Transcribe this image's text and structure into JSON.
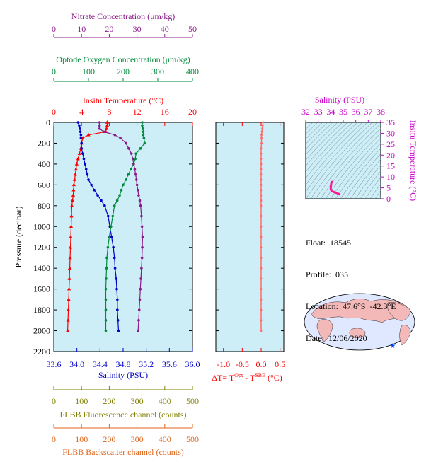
{
  "info": {
    "float_label": "Float:",
    "float": "18545",
    "profile_label": "Profile:",
    "profile": "035",
    "location_label": "Location:",
    "location": "47.6°S  -42.3°E",
    "date_label": "Date:",
    "date": "12/06/2020"
  },
  "colors": {
    "temperature": "#ff0000",
    "salinity": "#0000cc",
    "oxygen": "#008a3a",
    "nitrate": "#8b1a8b",
    "fluorescence": "#808000",
    "backscatter": "#e0661c",
    "dt": "#ff6b6b",
    "ts": "#ff1493",
    "panel_bg": "#cdeef6"
  },
  "chart_data": [
    {
      "type": "line",
      "panel": "main",
      "ylabel": "Pressure (decibar)",
      "ylim": [
        2200,
        0
      ],
      "yticks": [
        0,
        200,
        400,
        600,
        800,
        1000,
        1200,
        1400,
        1600,
        1800,
        2000,
        2200
      ],
      "axes": {
        "nitrate": {
          "label": "Nitrate Concentration (μm/kg)",
          "range": [
            0,
            50
          ],
          "ticks": [
            0,
            10,
            20,
            30,
            40,
            50
          ]
        },
        "oxygen": {
          "label": "Optode Oxygen Concentration (μm/kg)",
          "range": [
            0,
            400
          ],
          "ticks": [
            0,
            100,
            200,
            300,
            400
          ]
        },
        "temperature": {
          "label": "Insitu Temperature (°C)",
          "range": [
            0,
            20
          ],
          "ticks": [
            0,
            4,
            8,
            12,
            16,
            20
          ]
        },
        "salinity": {
          "label": "Salinity (PSU)",
          "range": [
            33.6,
            36.0
          ],
          "ticks": [
            "33.6",
            "34.0",
            "34.4",
            "34.8",
            "35.2",
            "35.6",
            "36.0"
          ]
        },
        "fluorescence": {
          "label": "FLBB Fluorescence channel (counts)",
          "range": [
            0,
            500
          ],
          "ticks": [
            0,
            100,
            200,
            300,
            400,
            500
          ]
        },
        "backscatter": {
          "label": "FLBB Backscatter channel (counts)",
          "range": [
            0,
            500
          ],
          "ticks": [
            0,
            100,
            200,
            300,
            400,
            500
          ]
        }
      },
      "series": [
        {
          "key": "temperature",
          "x": [
            7.7,
            7.7,
            7.6,
            7.5,
            5.0,
            4.2,
            4.0,
            3.9,
            3.7,
            3.5,
            3.3,
            3.2,
            3.1,
            3.0,
            2.9,
            2.85,
            2.8,
            2.7,
            2.6,
            2.55,
            2.5,
            2.45,
            2.4,
            2.35,
            2.3,
            2.25,
            2.2,
            2.15,
            2.1,
            2.05,
            2.0
          ],
          "y": [
            0,
            30,
            60,
            90,
            120,
            150,
            200,
            250,
            300,
            350,
            400,
            450,
            500,
            550,
            600,
            650,
            700,
            750,
            800,
            900,
            1000,
            1100,
            1200,
            1300,
            1400,
            1500,
            1600,
            1700,
            1800,
            1900,
            2000
          ]
        },
        {
          "key": "salinity",
          "x": [
            34.02,
            34.04,
            34.05,
            34.06,
            34.07,
            34.07,
            34.08,
            34.08,
            34.1,
            34.12,
            34.14,
            34.16,
            34.18,
            34.2,
            34.25,
            34.3,
            34.36,
            34.42,
            34.48,
            34.54,
            34.57,
            34.6,
            34.63,
            34.65,
            34.66,
            34.68,
            34.69,
            34.7,
            34.7,
            34.71,
            34.72
          ],
          "y": [
            0,
            30,
            60,
            90,
            120,
            150,
            200,
            250,
            300,
            350,
            400,
            450,
            500,
            550,
            600,
            650,
            700,
            750,
            800,
            900,
            1000,
            1100,
            1200,
            1300,
            1400,
            1500,
            1600,
            1700,
            1800,
            1900,
            2000
          ]
        },
        {
          "key": "oxygen",
          "x": [
            255,
            255,
            257,
            258,
            258,
            260,
            262,
            250,
            237,
            235,
            230,
            222,
            215,
            208,
            200,
            195,
            190,
            183,
            175,
            170,
            165,
            160,
            156,
            153,
            152,
            151,
            150,
            150,
            150,
            150,
            150
          ],
          "y": [
            0,
            30,
            60,
            90,
            120,
            150,
            200,
            250,
            300,
            350,
            400,
            450,
            500,
            550,
            600,
            650,
            700,
            750,
            800,
            900,
            1000,
            1100,
            1200,
            1300,
            1400,
            1500,
            1600,
            1700,
            1800,
            1900,
            2000
          ]
        },
        {
          "key": "nitrate",
          "x": [
            16.5,
            16.5,
            16.5,
            18,
            22,
            24,
            26,
            27,
            28,
            28.5,
            28.8,
            29.2,
            29.5,
            29.8,
            30,
            30.3,
            30.6,
            31,
            31.3,
            31.6,
            31.8,
            32,
            31.9,
            31.8,
            31.6,
            31.4,
            31.2,
            31,
            30.8,
            30.6,
            30.4
          ],
          "y": [
            0,
            30,
            60,
            90,
            120,
            150,
            200,
            250,
            300,
            350,
            400,
            450,
            500,
            550,
            600,
            650,
            700,
            750,
            800,
            900,
            1000,
            1100,
            1200,
            1300,
            1400,
            1500,
            1600,
            1700,
            1800,
            1900,
            2000
          ]
        }
      ]
    },
    {
      "type": "line",
      "panel": "dt",
      "xlabel": "ΔT= T^Opt - T^SBE (°C)",
      "xlim": [
        -1.2,
        0.6
      ],
      "xticks": [
        "-1.0",
        "-0.5",
        "0.0",
        "0.5"
      ],
      "ylim": [
        2200,
        0
      ],
      "series": [
        {
          "key": "dt",
          "x": [
            0.05,
            0.04,
            0.03,
            0.02,
            0.01,
            0.01,
            0.01,
            0.0,
            0.0,
            0.0,
            0.0,
            0.0,
            0.0,
            0.0,
            0.0,
            0.0,
            0.0,
            0.0,
            0.0,
            0.0,
            0.0,
            0.0,
            0.0,
            0.0,
            0.0,
            0.0,
            0.0,
            0.0,
            0.0,
            0.0,
            0.0
          ],
          "y": [
            0,
            30,
            60,
            90,
            120,
            150,
            200,
            250,
            300,
            350,
            400,
            450,
            500,
            550,
            600,
            650,
            700,
            750,
            800,
            900,
            1000,
            1100,
            1200,
            1300,
            1400,
            1500,
            1600,
            1700,
            1800,
            1900,
            2000
          ]
        }
      ]
    },
    {
      "type": "scatter",
      "panel": "ts",
      "xlabel": "Salinity (PSU)",
      "ylabel": "Insitu Temperature (°C)",
      "xlim": [
        32,
        38
      ],
      "ylim": [
        0,
        35
      ],
      "xticks": [
        32,
        33,
        34,
        35,
        36,
        37,
        38
      ],
      "yticks": [
        0,
        5,
        10,
        15,
        20,
        25,
        30,
        35
      ],
      "series": [
        {
          "key": "ts",
          "x": [
            34.1,
            34.05,
            34.02,
            34.0,
            34.0,
            34.05,
            34.1,
            34.2,
            34.3,
            34.4,
            34.5,
            34.6,
            34.7
          ],
          "y": [
            7.7,
            7.5,
            6.0,
            5.0,
            4.2,
            3.8,
            3.5,
            3.2,
            3.0,
            2.8,
            2.6,
            2.3,
            2.0
          ]
        }
      ]
    }
  ]
}
